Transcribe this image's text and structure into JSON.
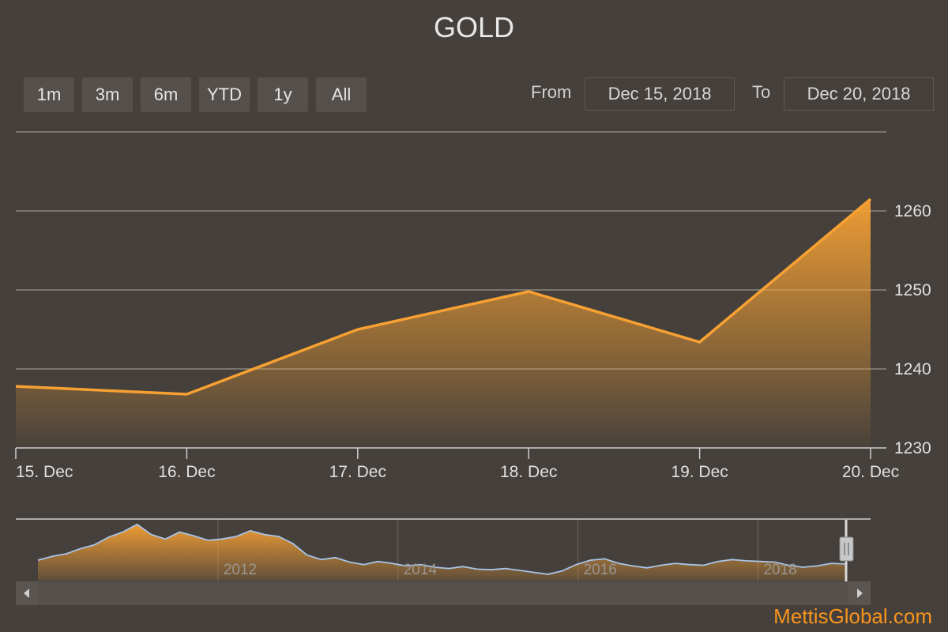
{
  "chart_data": {
    "type": "area",
    "title": "GOLD",
    "x": [
      "15. Dec",
      "16. Dec",
      "17. Dec",
      "18. Dec",
      "19. Dec",
      "20. Dec"
    ],
    "values": [
      1237.8,
      1236.8,
      1245.0,
      1249.8,
      1243.4,
      1261.5
    ],
    "ylim": [
      1230,
      1270
    ],
    "y_ticks": [
      1230,
      1240,
      1250,
      1260
    ],
    "grid": true,
    "color": "#f7a133",
    "navigator": {
      "labels": [
        "2012",
        "2014",
        "2016",
        "2018"
      ],
      "years": [
        2012,
        2014,
        2016,
        2018
      ],
      "x_range": [
        2010.0,
        2018.97
      ],
      "values": [
        1320,
        1380,
        1420,
        1500,
        1560,
        1680,
        1760,
        1880,
        1720,
        1650,
        1760,
        1700,
        1630,
        1650,
        1690,
        1780,
        1720,
        1690,
        1580,
        1400,
        1330,
        1360,
        1290,
        1250,
        1300,
        1270,
        1230,
        1250,
        1210,
        1190,
        1220,
        1180,
        1170,
        1190,
        1160,
        1130,
        1100,
        1150,
        1250,
        1320,
        1340,
        1270,
        1230,
        1200,
        1240,
        1270,
        1250,
        1240,
        1300,
        1330,
        1310,
        1300,
        1290,
        1240,
        1210,
        1230,
        1270,
        1260
      ],
      "ylim": [
        1000,
        1950
      ],
      "color": "#f7a133"
    }
  },
  "range_buttons": [
    "1m",
    "3m",
    "6m",
    "YTD",
    "1y",
    "All"
  ],
  "from_label": "From",
  "to_label": "To",
  "from_value": "Dec 15, 2018",
  "to_value": "Dec 20, 2018",
  "watermark": "MettisGlobal.com"
}
